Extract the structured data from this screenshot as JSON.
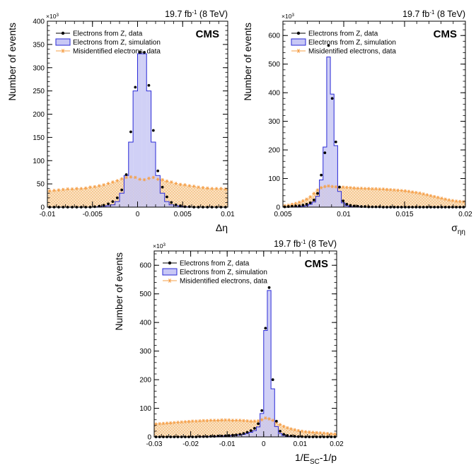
{
  "common": {
    "lumi_prefix": "19.7 fb",
    "lumi_exp": "-1",
    "lumi_suffix": " (8 TeV)",
    "cms_label": "CMS",
    "multiplier_base": "×10",
    "multiplier_exp": "3",
    "ylabel": "Number of events",
    "colors": {
      "sim_fill": "#c8c8f5",
      "sim_line": "#2a2ad6",
      "mis_fill": "#f9e3c4",
      "mis_line": "#f5a04a",
      "data_marker": "#000000"
    }
  },
  "chart_data": [
    {
      "type": "histogram",
      "xlabel": "Δη",
      "xlim": [
        -0.01,
        0.01
      ],
      "ylim": [
        0,
        400
      ],
      "xticks": [
        "-0.01",
        "-0.005",
        "0",
        "0.005",
        "0.01"
      ],
      "xtick_values": [
        -0.01,
        -0.005,
        0,
        0.005,
        0.01
      ],
      "yticks": [
        "0",
        "50",
        "100",
        "150",
        "200",
        "250",
        "300",
        "350",
        "400"
      ],
      "ytick_values": [
        0,
        50,
        100,
        150,
        200,
        250,
        300,
        350,
        400
      ],
      "legend": [
        "Electrons from Z, data",
        "Electrons from Z, simulation",
        "Misidentified electrons, data"
      ],
      "bin_edges_start": -0.01,
      "bin_width": 0.0005,
      "series": [
        {
          "name": "Electrons from Z, simulation",
          "values": [
            0,
            0,
            0,
            0,
            0,
            0,
            0,
            0,
            0,
            0,
            0,
            1,
            2,
            3,
            5,
            12,
            30,
            68,
            140,
            250,
            330,
            330,
            250,
            140,
            68,
            30,
            12,
            5,
            3,
            2,
            1,
            0,
            0,
            0,
            0,
            0,
            0,
            0,
            0,
            0
          ]
        },
        {
          "name": "Electrons from Z, data",
          "values": [
            0,
            0,
            0,
            0,
            0,
            0,
            0,
            0,
            0,
            0,
            1,
            2,
            4,
            7,
            12,
            20,
            37,
            70,
            162,
            258,
            333,
            333,
            262,
            165,
            78,
            43,
            22,
            10,
            5,
            3,
            1,
            1,
            0,
            0,
            0,
            0,
            0,
            0,
            0,
            0
          ]
        },
        {
          "name": "Misidentified electrons, data",
          "values": [
            35,
            36,
            37,
            38,
            39,
            39,
            40,
            40,
            41,
            43,
            44,
            46,
            48,
            51,
            54,
            57,
            61,
            64,
            65,
            64,
            60,
            59,
            62,
            64,
            60,
            59,
            56,
            54,
            51,
            49,
            48,
            46,
            45,
            43,
            42,
            41,
            40,
            40,
            40,
            39
          ]
        }
      ]
    },
    {
      "type": "histogram",
      "xlabel": "σ",
      "xlabel_sub": "ηη",
      "xlim": [
        0.005,
        0.02
      ],
      "ylim": [
        0,
        650
      ],
      "xticks": [
        "0.005",
        "0.01",
        "0.015",
        "0.02"
      ],
      "xtick_values": [
        0.005,
        0.01,
        0.015,
        0.02
      ],
      "yticks": [
        "0",
        "100",
        "200",
        "300",
        "400",
        "500",
        "600"
      ],
      "ytick_values": [
        0,
        100,
        200,
        300,
        400,
        500,
        600
      ],
      "legend": [
        "Electrons from Z, data",
        "Electrons from Z, simulation",
        "Misidentified electrons, data"
      ],
      "bin_edges_start": 0.005,
      "bin_width": 0.0003,
      "series": [
        {
          "name": "Electrons from Z, simulation",
          "values": [
            0,
            0,
            0,
            1,
            2,
            3,
            5,
            10,
            18,
            38,
            95,
            210,
            525,
            395,
            215,
            55,
            15,
            5,
            2,
            1,
            1,
            0,
            0,
            0,
            0,
            0,
            0,
            0,
            0,
            0,
            0,
            0,
            0,
            0,
            0,
            0,
            0,
            0,
            0,
            0,
            0,
            0,
            0,
            0,
            0,
            0,
            0,
            0,
            0,
            0
          ]
        },
        {
          "name": "Electrons from Z, data",
          "values": [
            1,
            2,
            3,
            4,
            5,
            7,
            10,
            15,
            25,
            48,
            112,
            190,
            565,
            380,
            228,
            70,
            22,
            10,
            6,
            4,
            3,
            2,
            2,
            1,
            1,
            1,
            1,
            0,
            0,
            0,
            0,
            0,
            0,
            0,
            0,
            0,
            0,
            0,
            0,
            0,
            0,
            0,
            0,
            0,
            0,
            0,
            0,
            0,
            0,
            0
          ]
        },
        {
          "name": "Misidentified electrons, data",
          "values": [
            5,
            7,
            10,
            13,
            17,
            22,
            28,
            36,
            48,
            60,
            68,
            72,
            74,
            72,
            71,
            70,
            70,
            69,
            68,
            67,
            66,
            66,
            65,
            65,
            64,
            64,
            63,
            63,
            62,
            61,
            60,
            59,
            58,
            57,
            55,
            53,
            51,
            49,
            46,
            43,
            40,
            37,
            34,
            31,
            28,
            25,
            23,
            21,
            20,
            19
          ]
        }
      ]
    },
    {
      "type": "histogram",
      "xlabel": "1/E",
      "xlabel_sub": "SC",
      "xlabel_suffix": "-1/p",
      "xlim": [
        -0.03,
        0.02
      ],
      "ylim": [
        0,
        650
      ],
      "xticks": [
        "-0.03",
        "-0.02",
        "-0.01",
        "0",
        "0.01",
        "0.02"
      ],
      "xtick_values": [
        -0.03,
        -0.02,
        -0.01,
        0,
        0.01,
        0.02
      ],
      "yticks": [
        "0",
        "100",
        "200",
        "300",
        "400",
        "500",
        "600"
      ],
      "ytick_values": [
        0,
        100,
        200,
        300,
        400,
        500,
        600
      ],
      "legend": [
        "Electrons from Z, data",
        "Electrons from Z, simulation",
        "Misidentified electrons, data"
      ],
      "bin_edges_start": -0.03,
      "bin_width": 0.001,
      "series": [
        {
          "name": "Electrons from Z, simulation",
          "values": [
            0,
            0,
            0,
            0,
            0,
            0,
            0,
            0,
            0,
            0,
            0,
            0,
            0,
            1,
            1,
            1,
            2,
            2,
            3,
            3,
            4,
            5,
            6,
            7,
            9,
            12,
            16,
            22,
            35,
            82,
            372,
            512,
            168,
            36,
            12,
            5,
            2,
            1,
            1,
            0,
            0,
            0,
            0,
            0,
            0,
            0,
            0,
            0,
            0,
            0
          ]
        },
        {
          "name": "Electrons from Z, data",
          "values": [
            0,
            0,
            0,
            0,
            0,
            0,
            0,
            0,
            0,
            0,
            0,
            0,
            1,
            1,
            1,
            2,
            2,
            3,
            3,
            4,
            5,
            6,
            7,
            9,
            12,
            16,
            22,
            30,
            46,
            92,
            380,
            522,
            200,
            55,
            20,
            9,
            5,
            3,
            2,
            1,
            1,
            0,
            0,
            0,
            0,
            0,
            0,
            0,
            0,
            0
          ]
        },
        {
          "name": "Misidentified electrons, data",
          "values": [
            45,
            46,
            47,
            48,
            49,
            50,
            51,
            52,
            53,
            54,
            55,
            55,
            56,
            57,
            57,
            58,
            58,
            58,
            59,
            59,
            59,
            58,
            58,
            58,
            57,
            56,
            55,
            55,
            56,
            60,
            66,
            63,
            58,
            51,
            43,
            37,
            32,
            28,
            25,
            22,
            20,
            18,
            17,
            16,
            15,
            14,
            13,
            12,
            11,
            10
          ]
        }
      ]
    }
  ]
}
